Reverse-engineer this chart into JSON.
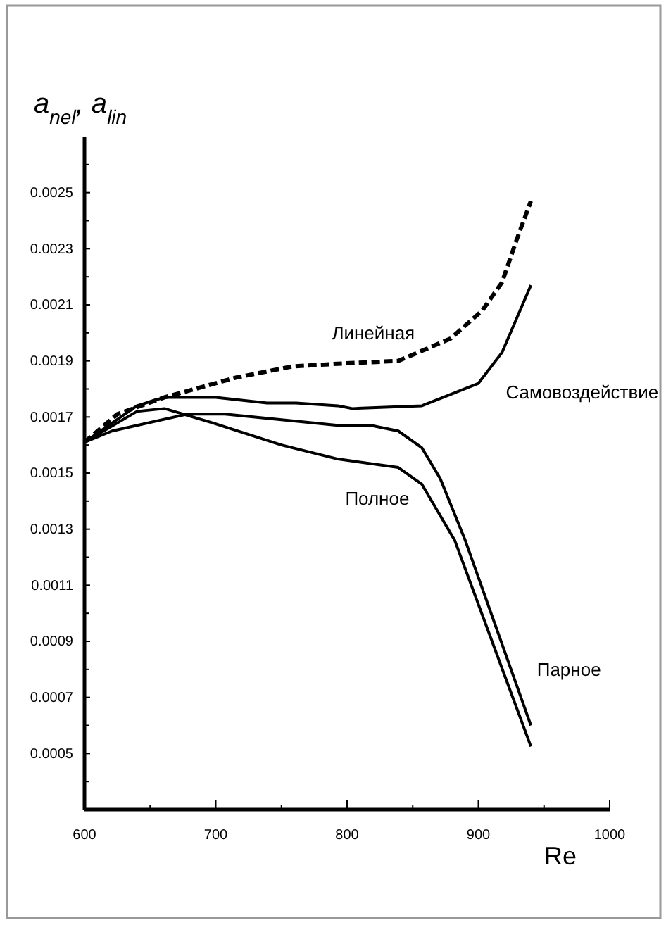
{
  "chart_data": {
    "type": "line",
    "xlabel": "Re",
    "ylabel": "a$_{nel}$, a$_{lin}$",
    "xlim": [
      600,
      1000
    ],
    "xticks": [
      600,
      {
        "value": 650,
        "label": null
      },
      700,
      {
        "value": 750,
        "label": null
      },
      800,
      {
        "value": 850,
        "label": null
      },
      900,
      {
        "value": 950,
        "label": null
      },
      1000
    ],
    "ylim": [
      0.0003,
      0.0027
    ],
    "yticks": [
      {
        "value": 0.0004,
        "label": null
      },
      0.0005,
      {
        "value": 0.0006,
        "label": null
      },
      0.0007,
      {
        "value": 0.0008,
        "label": null
      },
      0.0009,
      {
        "value": 0.001,
        "label": null
      },
      0.0011,
      {
        "value": 0.0012,
        "label": null
      },
      0.0013,
      {
        "value": 0.0014,
        "label": null
      },
      0.0015,
      {
        "value": 0.0016,
        "label": null
      },
      0.0017,
      {
        "value": 0.0018,
        "label": null
      },
      0.0019,
      {
        "value": 0.002,
        "label": null
      },
      0.0021,
      {
        "value": 0.0022,
        "label": null
      },
      0.0023,
      {
        "value": 0.0024,
        "label": null
      },
      0.0025,
      {
        "value": 0.0026,
        "label": null
      }
    ],
    "grid": false,
    "legend": false,
    "marker": "none",
    "series": [
      {
        "name": "Линейная",
        "color": "#000000",
        "line_style": "dashed",
        "x": [
          600,
          625,
          661,
          715,
          758,
          793,
          839,
          879,
          903,
          918,
          929,
          940
        ],
        "values": [
          0.00161,
          0.00171,
          0.00177,
          0.00184,
          0.00188,
          0.00189,
          0.0019,
          0.00198,
          0.00208,
          0.00218,
          0.00233,
          0.00247
        ]
      },
      {
        "name": "Самовоздействие",
        "color": "#000000",
        "line_style": "solid",
        "x": [
          600,
          640,
          661,
          700,
          739,
          761,
          793,
          804,
          857,
          900,
          918,
          940
        ],
        "values": [
          0.00161,
          0.00174,
          0.00177,
          0.00177,
          0.00175,
          0.00175,
          0.00174,
          0.00173,
          0.00174,
          0.00182,
          0.00193,
          0.00217
        ]
      },
      {
        "name": "Парное",
        "color": "#000000",
        "line_style": "solid",
        "x": [
          600,
          621,
          678,
          707,
          793,
          818,
          839,
          857,
          871,
          890,
          940
        ],
        "values": [
          0.00161,
          0.00165,
          0.00171,
          0.00171,
          0.00167,
          0.00167,
          0.00165,
          0.00159,
          0.00148,
          0.00126,
          0.0006
        ]
      },
      {
        "name": "Полное",
        "color": "#000000",
        "line_style": "solid",
        "x": [
          600,
          640,
          661,
          697,
          750,
          793,
          839,
          857,
          882,
          940
        ],
        "values": [
          0.00161,
          0.00172,
          0.00173,
          0.00168,
          0.0016,
          0.00155,
          0.00152,
          0.00146,
          0.00126,
          0.000525
        ]
      }
    ]
  }
}
